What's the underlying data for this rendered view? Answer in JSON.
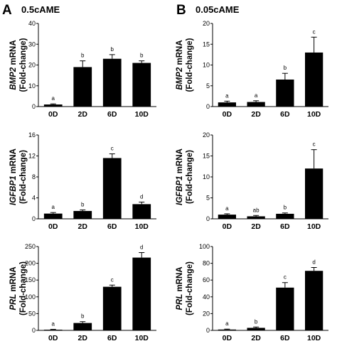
{
  "panel_labels": [
    "A",
    "B"
  ],
  "conditions": [
    "0.5cAME",
    "0.05cAME"
  ],
  "chart_data": [
    {
      "type": "bar",
      "panel": "A",
      "condition": "0.5cAME",
      "gene": "BMP2",
      "ylabel_rest": " mRNA",
      "ylabel_line2": "(Fold-change)",
      "categories": [
        "0D",
        "2D",
        "6D",
        "10D"
      ],
      "values": [
        1,
        19,
        23,
        21
      ],
      "errors": [
        0.3,
        3,
        2,
        1
      ],
      "letters": [
        "a",
        "b",
        "b",
        "b"
      ],
      "ylim": [
        0,
        40
      ],
      "yticks": [
        "0",
        "10",
        "20",
        "30",
        "40"
      ]
    },
    {
      "type": "bar",
      "panel": "A",
      "condition": "0.5cAME",
      "gene": "IGFBP1",
      "ylabel_rest": " mRNA",
      "ylabel_line2": "(Fold-change)",
      "categories": [
        "0D",
        "2D",
        "6D",
        "10D"
      ],
      "values": [
        1,
        1.5,
        11.6,
        2.8
      ],
      "errors": [
        0.2,
        0.2,
        0.8,
        0.4
      ],
      "letters": [
        "a",
        "b",
        "c",
        "d"
      ],
      "ylim": [
        0,
        16
      ],
      "yticks": [
        "0",
        "4",
        "8",
        "12",
        "16"
      ]
    },
    {
      "type": "bar",
      "panel": "A",
      "condition": "0.5cAME",
      "gene": "PRL",
      "ylabel_rest": " mRNA",
      "ylabel_line2": "(Fold-change)",
      "categories": [
        "0D",
        "2D",
        "6D",
        "10D"
      ],
      "values": [
        2,
        22,
        130,
        217
      ],
      "errors": [
        1,
        4,
        5,
        15
      ],
      "letters": [
        "a",
        "b",
        "c",
        "d"
      ],
      "ylim": [
        0,
        250
      ],
      "yticks": [
        "0",
        "50",
        "100",
        "150",
        "200",
        "250"
      ]
    },
    {
      "type": "bar",
      "panel": "B",
      "condition": "0.05cAME",
      "gene": "BMP2",
      "ylabel_rest": " mRNA",
      "ylabel_line2": "(Fold-change)",
      "categories": [
        "0D",
        "2D",
        "6D",
        "10D"
      ],
      "values": [
        1,
        1.1,
        6.5,
        13
      ],
      "errors": [
        0.3,
        0.3,
        1.5,
        3.7
      ],
      "letters": [
        "a",
        "a",
        "b",
        "c"
      ],
      "ylim": [
        0,
        20
      ],
      "yticks": [
        "0",
        "5",
        "10",
        "15",
        "20"
      ]
    },
    {
      "type": "bar",
      "panel": "B",
      "condition": "0.05cAME",
      "gene": "IGFBP1",
      "ylabel_rest": " mRNA",
      "ylabel_line2": "(Fold-change)",
      "categories": [
        "0D",
        "2D",
        "6D",
        "10D"
      ],
      "values": [
        1,
        0.6,
        1.2,
        12
      ],
      "errors": [
        0.2,
        0.2,
        0.2,
        4.5
      ],
      "letters": [
        "a",
        "ab",
        "b",
        "c"
      ],
      "ylim": [
        0,
        20
      ],
      "yticks": [
        "0",
        "5",
        "10",
        "15",
        "20"
      ]
    },
    {
      "type": "bar",
      "panel": "B",
      "condition": "0.05cAME",
      "gene": "PRL",
      "ylabel_rest": " mRNA",
      "ylabel_line2": "(Fold-change)",
      "categories": [
        "0D",
        "2D",
        "6D",
        "10D"
      ],
      "values": [
        1,
        3,
        51,
        71
      ],
      "errors": [
        0.5,
        1,
        6,
        4
      ],
      "letters": [
        "a",
        "b",
        "c",
        "d"
      ],
      "ylim": [
        0,
        100
      ],
      "yticks": [
        "0",
        "20",
        "40",
        "60",
        "80",
        "100"
      ]
    }
  ]
}
